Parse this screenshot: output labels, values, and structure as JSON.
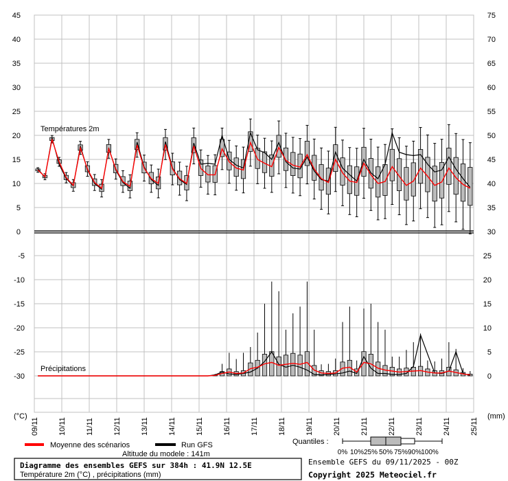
{
  "chart_data": {
    "type": "box",
    "temperature_section": {
      "label": "Températures 2m",
      "y_ticks_left": [
        0,
        5,
        10,
        15,
        20,
        25,
        30,
        35,
        40,
        45
      ],
      "y_ticks_right": [
        30,
        35,
        40,
        45,
        50,
        55,
        60,
        65,
        70,
        75
      ],
      "ylim": [
        0,
        45
      ],
      "mean_scenarios": [
        12.8,
        11.4,
        19.2,
        14.5,
        11.2,
        9.6,
        17.4,
        13.0,
        10.2,
        9.0,
        17.2,
        13.0,
        10.4,
        9.4,
        18.0,
        13.2,
        11.0,
        10.0,
        18.1,
        13.0,
        11.0,
        10.0,
        17.8,
        13.1,
        11.8,
        11.8,
        17.2,
        14.5,
        13.2,
        12.8,
        18.5,
        15.0,
        14.2,
        13.5,
        17.5,
        14.8,
        13.8,
        13.4,
        16.0,
        13.0,
        11.0,
        10.2,
        15.0,
        12.2,
        10.5,
        10.2,
        14.2,
        11.8,
        10.0,
        10.4,
        13.5,
        11.5,
        9.6,
        10.5,
        13.2,
        11.5,
        9.6,
        10.3,
        13.2,
        11.2,
        9.8,
        9.0
      ],
      "run_gfs": [
        13.0,
        11.3,
        19.5,
        14.0,
        11.0,
        9.5,
        17.8,
        12.8,
        10.0,
        8.8,
        17.4,
        12.8,
        10.2,
        9.0,
        18.6,
        13.4,
        10.8,
        9.6,
        18.7,
        13.2,
        10.8,
        9.8,
        18.4,
        14.0,
        14.2,
        14.0,
        20.0,
        15.0,
        13.8,
        13.2,
        20.5,
        17.0,
        16.4,
        15.0,
        18.5,
        14.5,
        13.2,
        13.0,
        15.5,
        12.6,
        10.8,
        10.5,
        16.5,
        13.2,
        11.8,
        10.5,
        15.0,
        12.2,
        11.0,
        14.0,
        20.5,
        16.5,
        16.0,
        15.8,
        16.0,
        14.0,
        12.4,
        12.8,
        15.5,
        13.0,
        11.0,
        9.2
      ]
    },
    "precip_section": {
      "label": "Précipitations",
      "y_ticks_left": [
        -30,
        -25,
        -20,
        -15,
        -10,
        -5
      ],
      "y_ticks_right": [
        0,
        5,
        10,
        15,
        20,
        25
      ],
      "ylim": [
        0,
        30
      ],
      "mean_scenarios": [
        0,
        0,
        0,
        0,
        0,
        0,
        0,
        0,
        0,
        0,
        0,
        0,
        0,
        0,
        0,
        0,
        0,
        0,
        0,
        0,
        0,
        0,
        0,
        0,
        0,
        0.1,
        0.5,
        0.8,
        0.5,
        0.6,
        1.5,
        1.8,
        2.5,
        2.8,
        2.2,
        2.4,
        2.6,
        2.4,
        2.8,
        1.2,
        0.6,
        0.5,
        0.6,
        1.6,
        1.8,
        0.8,
        2.8,
        2.5,
        1.6,
        1.2,
        1.0,
        0.8,
        0.9,
        1.0,
        1.1,
        0.8,
        0.6,
        0.6,
        1.0,
        0.7,
        0.4,
        0.2
      ],
      "run_gfs": [
        0,
        0,
        0,
        0,
        0,
        0,
        0,
        0,
        0,
        0,
        0,
        0,
        0,
        0,
        0,
        0,
        0,
        0,
        0,
        0,
        0,
        0,
        0,
        0,
        0,
        0.2,
        0.8,
        0.4,
        0.3,
        0.5,
        0.8,
        1.6,
        3.0,
        5.0,
        2.4,
        1.8,
        2.2,
        1.8,
        1.2,
        0.3,
        0.2,
        0.3,
        0.4,
        0.6,
        1.0,
        0.5,
        4.0,
        1.6,
        0.5,
        0.5,
        0.3,
        0.3,
        0.5,
        2.0,
        8.5,
        4.5,
        0.6,
        0.5,
        1.0,
        5.0,
        0.5,
        0.1
      ]
    },
    "x_unit_left": "(°C)",
    "x_unit_right": "(mm)",
    "dates": [
      "09/11",
      "10/11",
      "11/11",
      "12/11",
      "13/11",
      "14/11",
      "15/11",
      "16/11",
      "17/11",
      "18/11",
      "19/11",
      "20/11",
      "21/11",
      "22/11",
      "23/11",
      "24/11",
      "25/11"
    ],
    "legend": {
      "mean_label": "Moyenne des scénarios",
      "run_label": "Run GFS",
      "quantiles_label": "Quantiles :",
      "quantile_ticks": [
        "0%",
        "10%",
        "25%",
        "50%",
        "75%",
        "90%",
        "100%"
      ],
      "mean_color": "#ff0000",
      "run_color": "#000000"
    },
    "altitude_text": "Altitude du modele : 141m",
    "title_box": {
      "line1": "Diagramme des ensembles GEFS sur 384h : 41.9N 12.5E",
      "line2": "Température 2m (°C) , précipitations (mm)"
    },
    "ensemble_text": "Ensemble GEFS du 09/11/2025 - 00Z",
    "copyright": "Copyright 2025 Meteociel.fr",
    "colors": {
      "box_fill": "#bbbbbb",
      "grid": "#c0c0c0",
      "mean": "#ff0000",
      "run": "#000000"
    }
  }
}
